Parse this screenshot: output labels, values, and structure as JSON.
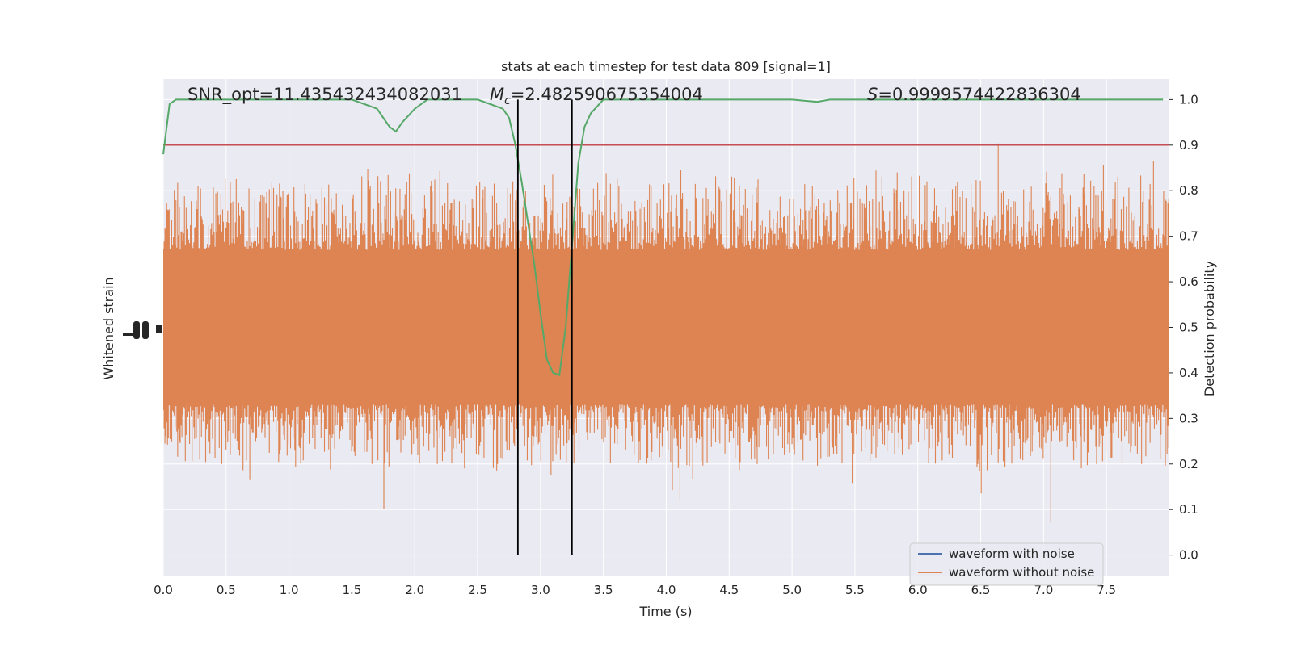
{
  "chart_data": {
    "type": "line",
    "title": "stats at each timestep for test data 809 [signal=1]",
    "xlabel": "Time (s)",
    "ylabel_left": "Whitened strain",
    "ylabel_right": "Detection probability",
    "xlim": [
      0.0,
      8.0
    ],
    "ylim_right": [
      -0.045,
      1.045
    ],
    "grid": true,
    "x_ticks": [
      "0.0",
      "0.5",
      "1.0",
      "1.5",
      "2.0",
      "2.5",
      "3.0",
      "3.5",
      "4.0",
      "4.5",
      "5.0",
      "5.5",
      "6.0",
      "6.5",
      "7.0",
      "7.5"
    ],
    "x_tick_values": [
      0.0,
      0.5,
      1.0,
      1.5,
      2.0,
      2.5,
      3.0,
      3.5,
      4.0,
      4.5,
      5.0,
      5.5,
      6.0,
      6.5,
      7.0,
      7.5
    ],
    "y_right_ticks": [
      "0.0",
      "0.1",
      "0.2",
      "0.3",
      "0.4",
      "0.5",
      "0.6",
      "0.7",
      "0.8",
      "0.9",
      "1.0"
    ],
    "y_right_tick_values": [
      0.0,
      0.1,
      0.2,
      0.3,
      0.4,
      0.5,
      0.6,
      0.7,
      0.8,
      0.9,
      1.0
    ],
    "annotations": {
      "snr": "SNR_opt=11.435432434082031",
      "mc_symbol": "M",
      "mc_subscript": "c",
      "mc_value": "=2.482590675354004",
      "s_symbol": "S",
      "s_value": "=0.9999574422836304"
    },
    "legend": {
      "placement": "lower-right",
      "entries": [
        {
          "label": "waveform with noise",
          "color": "#4c72b0"
        },
        {
          "label": "waveform without noise",
          "color": "#dd8452"
        }
      ]
    },
    "series": [
      {
        "name": "waveform without noise",
        "color": "#dd8452",
        "style": "dense-noise-band",
        "center": 0.5,
        "core_band": [
          0.33,
          0.67
        ],
        "typical_extent": [
          0.18,
          0.85
        ]
      },
      {
        "color": "#55a868",
        "style": "line",
        "x": [
          0.0,
          0.05,
          0.1,
          0.2,
          0.4,
          0.6,
          0.8,
          1.0,
          1.2,
          1.4,
          1.5,
          1.6,
          1.7,
          1.75,
          1.8,
          1.85,
          1.9,
          2.0,
          2.1,
          2.2,
          2.3,
          2.5,
          2.6,
          2.7,
          2.75,
          2.8,
          2.85,
          2.9,
          2.95,
          3.0,
          3.05,
          3.1,
          3.15,
          3.2,
          3.25,
          3.3,
          3.35,
          3.4,
          3.5,
          3.6,
          3.8,
          4.0,
          4.2,
          4.4,
          4.5,
          4.7,
          5.0,
          5.2,
          5.3,
          5.5,
          5.8,
          6.0,
          6.3,
          6.6,
          7.0,
          7.3,
          7.6,
          7.95
        ],
        "y": [
          0.88,
          0.99,
          1.0,
          1.0,
          1.0,
          1.0,
          1.0,
          1.0,
          1.0,
          1.0,
          1.0,
          0.99,
          0.98,
          0.96,
          0.94,
          0.93,
          0.95,
          0.98,
          1.0,
          1.0,
          1.0,
          1.0,
          0.99,
          0.98,
          0.96,
          0.9,
          0.82,
          0.73,
          0.64,
          0.53,
          0.43,
          0.4,
          0.395,
          0.5,
          0.68,
          0.86,
          0.94,
          0.97,
          1.0,
          1.0,
          1.0,
          1.0,
          1.0,
          1.0,
          1.0,
          1.0,
          1.0,
          0.995,
          1.0,
          1.0,
          1.0,
          1.0,
          1.0,
          1.0,
          1.0,
          1.0,
          1.0,
          1.0
        ]
      }
    ],
    "hlines": [
      {
        "y": 0.9,
        "color": "#c44e52"
      }
    ],
    "vlines": [
      {
        "x": 2.82,
        "color": "#000000"
      },
      {
        "x": 3.25,
        "color": "#000000"
      }
    ]
  }
}
